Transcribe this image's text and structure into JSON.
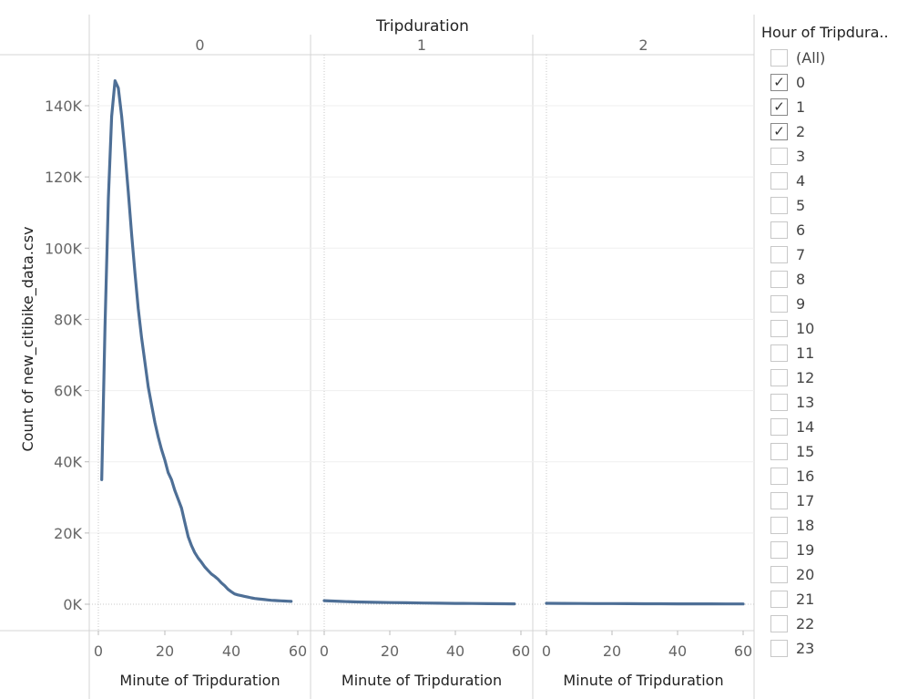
{
  "column_header": "Tripduration",
  "legend": {
    "title": "Hour of Tripdura..",
    "items": [
      {
        "label": "(All)",
        "checked": false
      },
      {
        "label": "0",
        "checked": true
      },
      {
        "label": "1",
        "checked": true
      },
      {
        "label": "2",
        "checked": true
      },
      {
        "label": "3",
        "checked": false
      },
      {
        "label": "4",
        "checked": false
      },
      {
        "label": "5",
        "checked": false
      },
      {
        "label": "6",
        "checked": false
      },
      {
        "label": "7",
        "checked": false
      },
      {
        "label": "8",
        "checked": false
      },
      {
        "label": "9",
        "checked": false
      },
      {
        "label": "10",
        "checked": false
      },
      {
        "label": "11",
        "checked": false
      },
      {
        "label": "12",
        "checked": false
      },
      {
        "label": "13",
        "checked": false
      },
      {
        "label": "14",
        "checked": false
      },
      {
        "label": "15",
        "checked": false
      },
      {
        "label": "16",
        "checked": false
      },
      {
        "label": "17",
        "checked": false
      },
      {
        "label": "18",
        "checked": false
      },
      {
        "label": "19",
        "checked": false
      },
      {
        "label": "20",
        "checked": false
      },
      {
        "label": "21",
        "checked": false
      },
      {
        "label": "22",
        "checked": false
      },
      {
        "label": "23",
        "checked": false
      }
    ]
  },
  "chart_data": {
    "type": "line",
    "ylabel": "Count of new_citibike_data.csv",
    "xlabel": "Minute of Tripduration",
    "ylim": [
      0,
      150000
    ],
    "xlim": [
      0,
      60
    ],
    "yticks": [
      0,
      20000,
      40000,
      60000,
      80000,
      100000,
      120000,
      140000
    ],
    "ytick_labels": [
      "0K",
      "20K",
      "40K",
      "60K",
      "80K",
      "100K",
      "120K",
      "140K"
    ],
    "xticks": [
      0,
      20,
      40,
      60
    ],
    "xtick_labels": [
      "0",
      "20",
      "40",
      "60"
    ],
    "line_color": "#4e6f96",
    "panels": [
      {
        "label": "0",
        "x": [
          1,
          2,
          3,
          4,
          5,
          6,
          7,
          8,
          9,
          10,
          11,
          12,
          13,
          14,
          15,
          16,
          17,
          18,
          19,
          20,
          21,
          22,
          23,
          24,
          25,
          26,
          27,
          28,
          29,
          30,
          31,
          32,
          33,
          34,
          35,
          36,
          37,
          38,
          39,
          40,
          41,
          42,
          43,
          44,
          45,
          46,
          47,
          48,
          49,
          50,
          51,
          52,
          53,
          54,
          55,
          56,
          57,
          58
        ],
        "y": [
          35000,
          78000,
          114000,
          137000,
          147000,
          145000,
          137000,
          127000,
          116000,
          104000,
          93000,
          83000,
          75000,
          68000,
          61000,
          56000,
          51000,
          47000,
          43500,
          40500,
          37000,
          35000,
          32000,
          29500,
          27000,
          23000,
          19000,
          16500,
          14500,
          13000,
          11800,
          10500,
          9500,
          8500,
          7800,
          7000,
          6000,
          5200,
          4200,
          3500,
          2900,
          2600,
          2400,
          2200,
          2000,
          1800,
          1600,
          1500,
          1400,
          1300,
          1200,
          1100,
          1050,
          1000,
          950,
          900,
          850,
          800
        ]
      },
      {
        "label": "1",
        "x": [
          0,
          5,
          10,
          15,
          20,
          25,
          30,
          35,
          40,
          45,
          50,
          55,
          58
        ],
        "y": [
          1000,
          800,
          650,
          550,
          470,
          400,
          340,
          290,
          240,
          200,
          160,
          130,
          110
        ]
      },
      {
        "label": "2",
        "x": [
          0,
          5,
          10,
          15,
          20,
          25,
          30,
          35,
          40,
          45,
          50,
          55,
          60
        ],
        "y": [
          250,
          230,
          210,
          190,
          170,
          155,
          140,
          125,
          110,
          100,
          90,
          80,
          70
        ]
      }
    ]
  }
}
